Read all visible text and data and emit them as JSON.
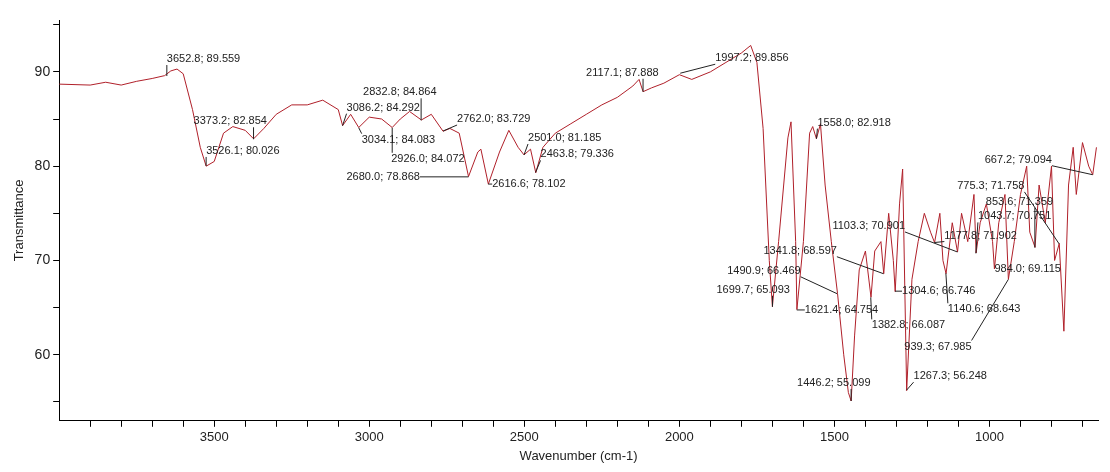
{
  "chart_data": {
    "type": "line",
    "xlabel": "Wavenumber (cm-1)",
    "ylabel": "Transmittance",
    "grid": false,
    "legend": false,
    "marker": "none",
    "line_style": "solid",
    "xlim": [
      4000,
      650
    ],
    "ylim": [
      53,
      95.5
    ],
    "xticks": [
      {
        "value": 3900,
        "label": null
      },
      {
        "value": 3800,
        "label": null
      },
      {
        "value": 3700,
        "label": null
      },
      {
        "value": 3600,
        "label": null
      },
      3500,
      {
        "value": 3400,
        "label": null
      },
      {
        "value": 3300,
        "label": null
      },
      {
        "value": 3200,
        "label": null
      },
      {
        "value": 3100,
        "label": null
      },
      3000,
      {
        "value": 2900,
        "label": null
      },
      {
        "value": 2800,
        "label": null
      },
      {
        "value": 2700,
        "label": null
      },
      {
        "value": 2600,
        "label": null
      },
      2500,
      {
        "value": 2400,
        "label": null
      },
      {
        "value": 2300,
        "label": null
      },
      {
        "value": 2200,
        "label": null
      },
      {
        "value": 2100,
        "label": null
      },
      2000,
      {
        "value": 1900,
        "label": null
      },
      {
        "value": 1800,
        "label": null
      },
      {
        "value": 1700,
        "label": null
      },
      {
        "value": 1600,
        "label": null
      },
      1500,
      {
        "value": 1400,
        "label": null
      },
      {
        "value": 1300,
        "label": null
      },
      {
        "value": 1200,
        "label": null
      },
      {
        "value": 1100,
        "label": null
      },
      1000,
      {
        "value": 900,
        "label": null
      },
      {
        "value": 800,
        "label": null
      },
      {
        "value": 700,
        "label": null
      }
    ],
    "yticks": [
      {
        "value": 55,
        "label": null
      },
      60,
      {
        "value": 65,
        "label": null
      },
      70,
      {
        "value": 75,
        "label": null
      },
      80,
      {
        "value": 85,
        "label": null
      },
      90,
      {
        "value": 95,
        "label": null
      }
    ],
    "series": [
      {
        "color": "#b0202a",
        "x": [
          4000,
          3900,
          3850,
          3800,
          3750,
          3700,
          3660,
          3640,
          3620,
          3600,
          3570,
          3545,
          3526,
          3500,
          3470,
          3440,
          3400,
          3373,
          3340,
          3300,
          3250,
          3200,
          3150,
          3100,
          3086,
          3060,
          3034,
          3000,
          2960,
          2926,
          2900,
          2870,
          2832,
          2800,
          2762,
          2740,
          2710,
          2680,
          2650,
          2640,
          2616,
          2580,
          2550,
          2520,
          2501,
          2480,
          2463,
          2440,
          2400,
          2350,
          2300,
          2250,
          2200,
          2150,
          2130,
          2117,
          2090,
          2050,
          2000,
          1960,
          1900,
          1850,
          1800,
          1770,
          1750,
          1730,
          1710,
          1700,
          1680,
          1650,
          1640,
          1625,
          1621,
          1600,
          1580,
          1570,
          1558,
          1545,
          1530,
          1510,
          1490,
          1470,
          1455,
          1446,
          1435,
          1420,
          1400,
          1382,
          1370,
          1350,
          1341,
          1325,
          1310,
          1304,
          1290,
          1280,
          1267,
          1250,
          1230,
          1210,
          1190,
          1177,
          1160,
          1150,
          1140,
          1120,
          1103,
          1090,
          1070,
          1050,
          1043,
          1030,
          1010,
          990,
          984,
          970,
          950,
          939,
          920,
          900,
          880,
          870,
          853,
          840,
          820,
          800,
          790,
          775,
          760,
          745,
          730,
          720,
          700,
          680,
          667,
          655
        ],
        "values": [
          88.7,
          88.6,
          88.9,
          88.6,
          89.0,
          89.3,
          89.6,
          90.1,
          90.3,
          89.8,
          86,
          82,
          80.0,
          80.5,
          83.5,
          84.2,
          83.8,
          82.9,
          84,
          85.5,
          86.5,
          86.5,
          87.0,
          86,
          84.3,
          85.5,
          84.1,
          85.2,
          85.0,
          84.1,
          85.0,
          85.8,
          84.9,
          85.5,
          83.7,
          84.0,
          83.5,
          78.9,
          81.5,
          81.8,
          78.1,
          81.5,
          83.8,
          82,
          81.2,
          81.8,
          79.3,
          82,
          83.5,
          84.5,
          85.5,
          86.5,
          87.3,
          88.5,
          89.2,
          87.9,
          88.3,
          88.8,
          89.7,
          89.2,
          90.0,
          91.0,
          92,
          92.8,
          91,
          84,
          70,
          65.1,
          72,
          83,
          84.7,
          72,
          64.8,
          72,
          83.5,
          84.2,
          82.9,
          84.5,
          78,
          72,
          66.5,
          60,
          56,
          55.1,
          62,
          69,
          71,
          66.1,
          71,
          72,
          68.6,
          75,
          70,
          66.7,
          76,
          79.7,
          56.2,
          68,
          72,
          75,
          73,
          71.9,
          75,
          70,
          68.6,
          74,
          70.9,
          75,
          72,
          77,
          70.8,
          74,
          76,
          72,
          69.1,
          74,
          77,
          68.0,
          72,
          77,
          80,
          73,
          71.4,
          78,
          74,
          80,
          70,
          71.8,
          62.5,
          78,
          82,
          77,
          82.5,
          80,
          79.1,
          82
        ]
      }
    ],
    "annotations": [
      {
        "text": "3652.8; 89.559",
        "x": 3652.8,
        "y": 89.559
      },
      {
        "text": "3373.2; 82.854",
        "x": 3373.2,
        "y": 82.854
      },
      {
        "text": "3526.1; 80.026",
        "x": 3526.1,
        "y": 80.026
      },
      {
        "text": "3086.2; 84.292",
        "x": 3086.2,
        "y": 84.292
      },
      {
        "text": "2832.8; 84.864",
        "x": 2832.8,
        "y": 84.864
      },
      {
        "text": "3034.1; 84.083",
        "x": 3034.1,
        "y": 84.083
      },
      {
        "text": "2926.0; 84.072",
        "x": 2926.0,
        "y": 84.072
      },
      {
        "text": "2762.0; 83.729",
        "x": 2762.0,
        "y": 83.729
      },
      {
        "text": "2680.0; 78.868",
        "x": 2680.0,
        "y": 78.868
      },
      {
        "text": "2616.6; 78.102",
        "x": 2616.6,
        "y": 78.102
      },
      {
        "text": "2501.0; 81.185",
        "x": 2501.0,
        "y": 81.185
      },
      {
        "text": "2463.8; 79.336",
        "x": 2463.8,
        "y": 79.336
      },
      {
        "text": "2117.1; 87.888",
        "x": 2117.1,
        "y": 87.888
      },
      {
        "text": "1997.2; 89.856",
        "x": 1997.2,
        "y": 89.856
      },
      {
        "text": "1558.0; 82.918",
        "x": 1558.0,
        "y": 82.918
      },
      {
        "text": "1699.7; 65.093",
        "x": 1699.7,
        "y": 65.093
      },
      {
        "text": "1621.4; 64.754",
        "x": 1621.4,
        "y": 64.754
      },
      {
        "text": "1490.9; 66.469",
        "x": 1490.9,
        "y": 66.469
      },
      {
        "text": "1446.2; 55.099",
        "x": 1446.2,
        "y": 55.099
      },
      {
        "text": "1382.8; 66.087",
        "x": 1382.8,
        "y": 66.087
      },
      {
        "text": "1341.8; 68.597",
        "x": 1341.8,
        "y": 68.597
      },
      {
        "text": "1304.6; 66.746",
        "x": 1304.6,
        "y": 66.746
      },
      {
        "text": "1267.3; 56.248",
        "x": 1267.3,
        "y": 56.248
      },
      {
        "text": "1177.8; 71.902",
        "x": 1177.8,
        "y": 71.902
      },
      {
        "text": "1140.6; 68.643",
        "x": 1140.6,
        "y": 68.643
      },
      {
        "text": "1103.3; 70.901",
        "x": 1103.3,
        "y": 70.901
      },
      {
        "text": "1043.7; 70.751",
        "x": 1043.7,
        "y": 70.751
      },
      {
        "text": "984.0; 69.115",
        "x": 984.0,
        "y": 69.115
      },
      {
        "text": "939.3; 67.985",
        "x": 939.3,
        "y": 67.985
      },
      {
        "text": "853.6; 71.359",
        "x": 853.6,
        "y": 71.359
      },
      {
        "text": "775.3; 71.758",
        "x": 775.3,
        "y": 71.758
      },
      {
        "text": "667.2; 79.094",
        "x": 667.2,
        "y": 79.094
      }
    ]
  }
}
